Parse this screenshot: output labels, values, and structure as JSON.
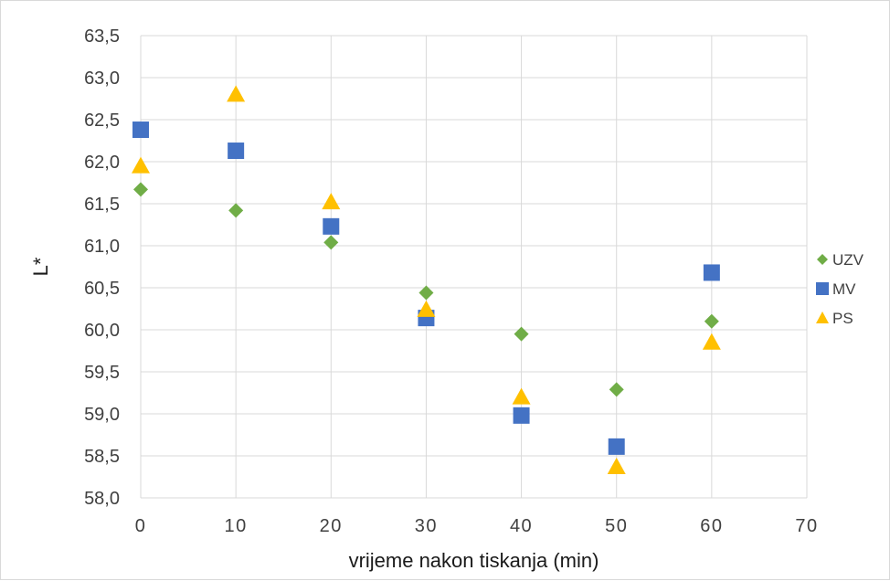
{
  "chart_data": {
    "type": "scatter",
    "title": "",
    "xlabel": "vrijeme nakon tiskanja (min)",
    "ylabel": "L*",
    "xlim": [
      0,
      70
    ],
    "ylim": [
      58.0,
      63.5
    ],
    "x_ticks": [
      "0",
      "10",
      "20",
      "30",
      "40",
      "50",
      "60",
      "70"
    ],
    "y_ticks": [
      "58,0",
      "58,5",
      "59,0",
      "59,5",
      "60,0",
      "60,5",
      "61,0",
      "61,5",
      "62,0",
      "62,5",
      "63,0",
      "63,5"
    ],
    "grid": true,
    "legend_position": "right",
    "series": [
      {
        "name": "UZV",
        "marker": "diamond",
        "color": "#70ad47",
        "points": [
          [
            0,
            61.67
          ],
          [
            10,
            61.42
          ],
          [
            20,
            61.04
          ],
          [
            30,
            60.44
          ],
          [
            40,
            59.95
          ],
          [
            50,
            59.29
          ],
          [
            60,
            60.1
          ]
        ]
      },
      {
        "name": "MV",
        "marker": "square",
        "color": "#4472c4",
        "points": [
          [
            0,
            62.38
          ],
          [
            10,
            62.13
          ],
          [
            20,
            61.23
          ],
          [
            30,
            60.14
          ],
          [
            40,
            58.98
          ],
          [
            50,
            58.61
          ],
          [
            60,
            60.68
          ]
        ]
      },
      {
        "name": "PS",
        "marker": "triangle",
        "color": "#ffc000",
        "points": [
          [
            0,
            61.95
          ],
          [
            10,
            62.8
          ],
          [
            20,
            61.52
          ],
          [
            30,
            60.24
          ],
          [
            40,
            59.2
          ],
          [
            50,
            58.37
          ],
          [
            60,
            59.85
          ]
        ]
      }
    ]
  }
}
